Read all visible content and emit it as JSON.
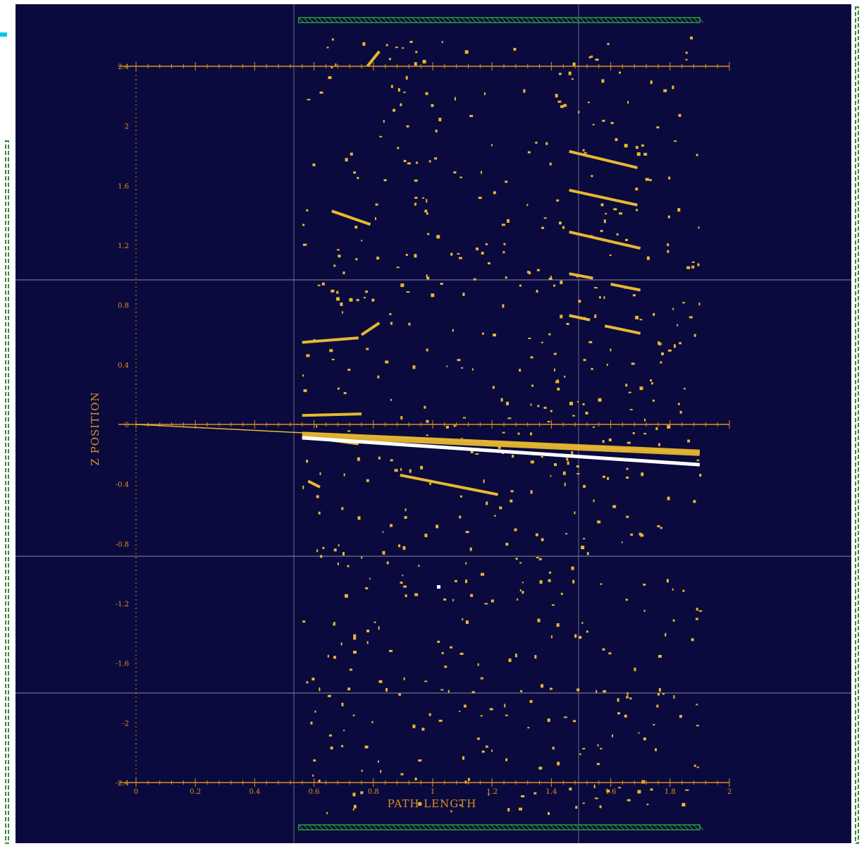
{
  "chart_data": {
    "type": "scatter",
    "xlabel": "PATH LENGTH",
    "ylabel": "Z POSITION",
    "xlim": [
      0,
      2
    ],
    "ylim": [
      -2.4,
      2.4
    ],
    "x_ticks": [
      "0",
      "0.2",
      "0.4",
      "0.6",
      "0.8",
      "1",
      "1.2",
      "1.4",
      "1.6",
      "1.8",
      "2"
    ],
    "y_ticks": [
      "2.4",
      "2",
      "1.6",
      "1.2",
      "0.8",
      "0.4",
      "0",
      "-0.4",
      "-0.8",
      "-1.2",
      "-1.6",
      "-2",
      "-2.4"
    ],
    "grid": false,
    "colors": {
      "background": "#0a0a3e",
      "axis": "#e0901a",
      "hits": "#e8b830",
      "track_fit": "#ffffff",
      "detector_boundary": "#2a9d3a",
      "window_border": "#3a8a3a"
    },
    "hit_region": {
      "x_min": 0.56,
      "x_max": 1.9
    },
    "fitted_track": {
      "x": [
        0,
        1.9
      ],
      "y": [
        0,
        -0.19
      ]
    },
    "white_track": {
      "x": [
        0.56,
        1.9
      ],
      "y": [
        -0.09,
        -0.27
      ]
    },
    "segments": [
      {
        "x": [
          0.56,
          0.75
        ],
        "y": [
          -0.08,
          -0.13
        ]
      },
      {
        "x": [
          0.56,
          1.9
        ],
        "y": [
          -0.07,
          -0.19
        ]
      },
      {
        "x": [
          0.56,
          0.75
        ],
        "y": [
          0.55,
          0.58
        ]
      },
      {
        "x": [
          0.76,
          0.82
        ],
        "y": [
          0.6,
          0.68
        ]
      },
      {
        "x": [
          0.56,
          0.76
        ],
        "y": [
          0.06,
          0.07
        ]
      },
      {
        "x": [
          0.66,
          0.79
        ],
        "y": [
          1.43,
          1.34
        ]
      },
      {
        "x": [
          0.89,
          1.22
        ],
        "y": [
          -0.34,
          -0.47
        ]
      },
      {
        "x": [
          0.58,
          0.62
        ],
        "y": [
          -0.38,
          -0.42
        ]
      },
      {
        "x": [
          1.46,
          1.69
        ],
        "y": [
          1.83,
          1.72
        ]
      },
      {
        "x": [
          1.46,
          1.69
        ],
        "y": [
          1.57,
          1.47
        ]
      },
      {
        "x": [
          1.46,
          1.7
        ],
        "y": [
          1.29,
          1.18
        ]
      },
      {
        "x": [
          1.46,
          1.54
        ],
        "y": [
          1.01,
          0.98
        ]
      },
      {
        "x": [
          1.6,
          1.7
        ],
        "y": [
          0.94,
          0.9
        ]
      },
      {
        "x": [
          1.46,
          1.53
        ],
        "y": [
          0.73,
          0.7
        ]
      },
      {
        "x": [
          1.58,
          1.7
        ],
        "y": [
          0.66,
          0.61
        ]
      },
      {
        "x": [
          0.78,
          0.82
        ],
        "y": [
          2.4,
          2.5
        ]
      }
    ],
    "hits_scatter_seed": 7,
    "hits_scatter_count": 620
  }
}
